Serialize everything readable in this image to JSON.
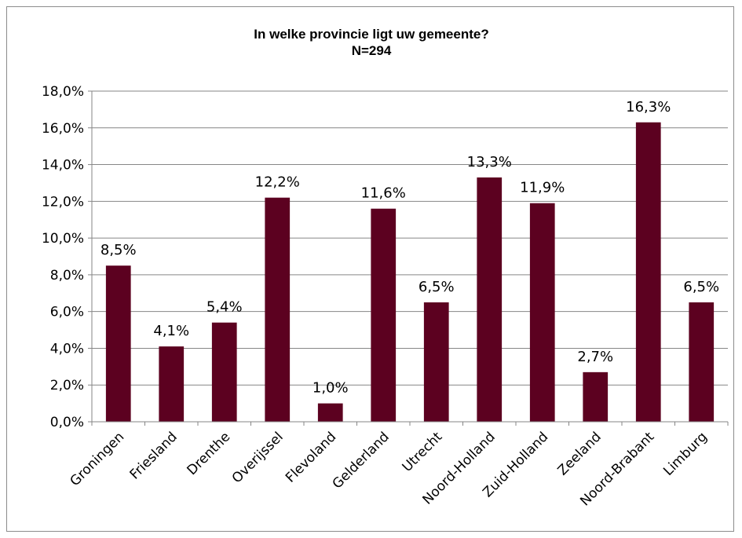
{
  "chart_data": {
    "type": "bar",
    "title": "In welke provincie ligt uw gemeente?",
    "subtitle": "N=294",
    "xlabel": "",
    "ylabel": "",
    "categories": [
      "Groningen",
      "Friesland",
      "Drenthe",
      "Overijssel",
      "Flevoland",
      "Gelderland",
      "Utrecht",
      "Noord-Holland",
      "Zuid-Holland",
      "Zeeland",
      "Noord-Brabant",
      "Limburg"
    ],
    "values": [
      8.5,
      4.1,
      5.4,
      12.2,
      1.0,
      11.6,
      6.5,
      13.3,
      11.9,
      2.7,
      16.3,
      6.5
    ],
    "value_labels": [
      "8,5%",
      "4,1%",
      "5,4%",
      "12,2%",
      "1,0%",
      "11,6%",
      "6,5%",
      "13,3%",
      "11,9%",
      "2,7%",
      "16,3%",
      "6,5%"
    ],
    "ylim": [
      0,
      18
    ],
    "y_ticks": [
      0,
      2,
      4,
      6,
      8,
      10,
      12,
      14,
      16,
      18
    ],
    "y_tick_labels": [
      "0,0%",
      "2,0%",
      "4,0%",
      "6,0%",
      "8,0%",
      "10,0%",
      "12,0%",
      "14,0%",
      "16,0%",
      "18,0%"
    ],
    "grid": true,
    "legend": "none",
    "bar_color": "#5c0120",
    "grid_color": "#868686"
  }
}
